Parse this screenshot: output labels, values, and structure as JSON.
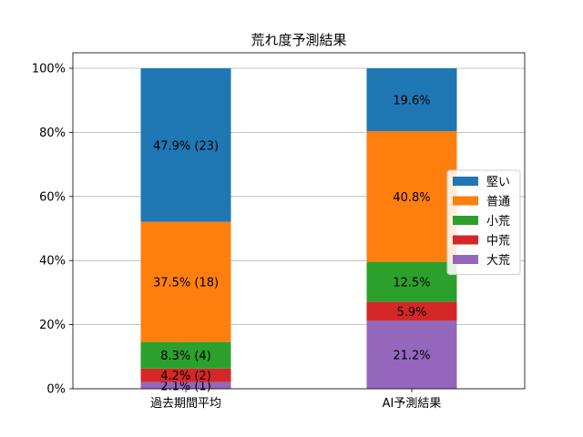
{
  "chart_data": {
    "type": "bar",
    "stacked": true,
    "title": "荒れ度予測結果",
    "xlabel": "",
    "ylabel": "",
    "ylim": [
      0,
      100
    ],
    "y_ticks": [
      "0%",
      "20%",
      "40%",
      "60%",
      "80%",
      "100%"
    ],
    "grid": "y",
    "legend_position": "center-right",
    "categories": [
      "過去期間平均",
      "AI予測結果"
    ],
    "series": [
      {
        "name": "大荒",
        "color": "#9467bd",
        "values": [
          2.1,
          21.2
        ],
        "labels": [
          "2.1% (1)",
          "21.2%"
        ]
      },
      {
        "name": "中荒",
        "color": "#d62728",
        "values": [
          4.2,
          5.9
        ],
        "labels": [
          "4.2% (2)",
          "5.9%"
        ]
      },
      {
        "name": "小荒",
        "color": "#2ca02c",
        "values": [
          8.3,
          12.5
        ],
        "labels": [
          "8.3% (4)",
          "12.5%"
        ]
      },
      {
        "name": "普通",
        "color": "#ff7f0e",
        "values": [
          37.5,
          40.8
        ],
        "labels": [
          "37.5% (18)",
          "40.8%"
        ]
      },
      {
        "name": "堅い",
        "color": "#1f77b4",
        "values": [
          47.9,
          19.6
        ],
        "labels": [
          "47.9% (23)",
          "19.6%"
        ]
      }
    ],
    "legend_order": [
      "堅い",
      "普通",
      "小荒",
      "中荒",
      "大荒"
    ]
  }
}
